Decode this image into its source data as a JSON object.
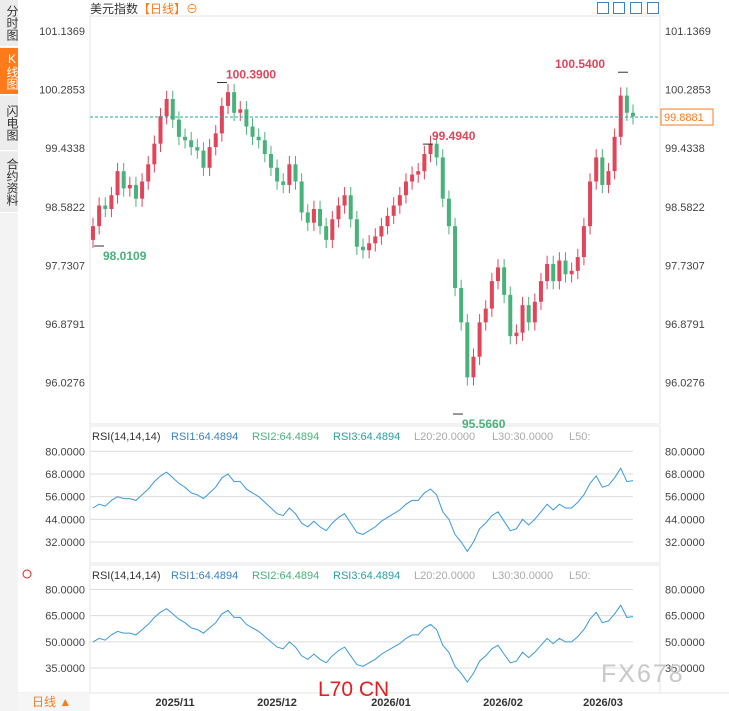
{
  "sidebar": {
    "tabs": [
      {
        "label": "分时图",
        "active": false
      },
      {
        "label": "K线图",
        "active": true
      },
      {
        "label": "闪电图",
        "active": false
      },
      {
        "label": "合约资料",
        "active": false
      }
    ]
  },
  "header": {
    "title": "美元指数",
    "timeframe": "【日线】",
    "settings_glyph": "⊖",
    "toolbar_icons": [
      "fit-icon",
      "expand-icon",
      "arrow-icon",
      "close-icon"
    ]
  },
  "footer": {
    "timeframe": "日线 ▲"
  },
  "watermarks": {
    "left": "L70 CN",
    "right": "FX678"
  },
  "colors": {
    "up": "#e0455a",
    "down": "#48b27a",
    "accent": "#ff7a1a",
    "rsi": "#3a9ad9"
  },
  "chart_data": [
    {
      "type": "candlestick",
      "title": "美元指数",
      "ylim": [
        95.45,
        101.3
      ],
      "y_ticks": [
        "101.1369",
        "100.2853",
        "99.4338",
        "98.5822",
        "97.7307",
        "96.8791",
        "96.0276"
      ],
      "x_ticks": [
        "2025/11",
        "2025/12",
        "2026/01",
        "2026/02",
        "2026/03"
      ],
      "last_price": "99.8881",
      "last_price_value": 99.8881,
      "annotations": [
        {
          "label": "98.0109",
          "value": 98.0109,
          "kind": "low"
        },
        {
          "label": "100.3900",
          "value": 100.39,
          "kind": "high"
        },
        {
          "label": "99.4940",
          "value": 99.494,
          "kind": "high"
        },
        {
          "label": "95.5660",
          "value": 95.566,
          "kind": "low"
        },
        {
          "label": "100.5400",
          "value": 100.54,
          "kind": "high"
        }
      ],
      "closes": [
        98.3,
        98.6,
        98.55,
        98.75,
        99.1,
        98.85,
        98.9,
        98.7,
        98.95,
        99.2,
        99.5,
        99.9,
        100.15,
        99.85,
        99.6,
        99.55,
        99.45,
        99.4,
        99.15,
        99.45,
        99.65,
        100.05,
        100.25,
        99.95,
        100.0,
        99.75,
        99.6,
        99.55,
        99.35,
        99.15,
        98.95,
        98.9,
        99.2,
        98.95,
        98.5,
        98.35,
        98.55,
        98.3,
        98.1,
        98.4,
        98.6,
        98.75,
        98.4,
        98.0,
        97.95,
        98.05,
        98.15,
        98.3,
        98.45,
        98.6,
        98.75,
        98.95,
        99.05,
        99.1,
        99.35,
        99.5,
        99.3,
        98.7,
        98.3,
        97.4,
        96.9,
        96.1,
        96.4,
        96.9,
        97.1,
        97.5,
        97.7,
        97.3,
        96.7,
        96.75,
        97.15,
        96.9,
        97.2,
        97.5,
        97.75,
        97.5,
        97.8,
        97.6,
        97.65,
        97.85,
        98.3,
        98.95,
        99.3,
        98.9,
        99.1,
        99.6,
        100.2,
        99.95,
        99.9
      ],
      "opens": [
        98.1,
        98.3,
        98.6,
        98.55,
        98.75,
        99.1,
        98.85,
        98.9,
        98.7,
        98.95,
        99.2,
        99.5,
        99.9,
        100.15,
        99.85,
        99.6,
        99.55,
        99.45,
        99.4,
        99.15,
        99.45,
        99.65,
        100.05,
        100.25,
        99.95,
        100.0,
        99.75,
        99.6,
        99.55,
        99.35,
        99.15,
        98.95,
        98.9,
        99.2,
        98.95,
        98.5,
        98.35,
        98.55,
        98.3,
        98.1,
        98.4,
        98.6,
        98.75,
        98.4,
        98.0,
        97.95,
        98.05,
        98.15,
        98.3,
        98.45,
        98.6,
        98.75,
        98.95,
        99.05,
        99.1,
        99.35,
        99.5,
        99.3,
        98.7,
        98.3,
        97.4,
        96.9,
        96.1,
        96.4,
        96.9,
        97.1,
        97.5,
        97.7,
        97.3,
        96.7,
        96.75,
        97.15,
        96.9,
        97.2,
        97.5,
        97.75,
        97.5,
        97.8,
        97.6,
        97.65,
        97.85,
        98.3,
        98.95,
        99.3,
        98.9,
        99.1,
        99.6,
        100.2,
        99.95
      ],
      "rsi_values": [
        50,
        52,
        51,
        54,
        56,
        55,
        55,
        54,
        57,
        60,
        64,
        67,
        69,
        66,
        63,
        61,
        58,
        57,
        55,
        58,
        61,
        66,
        68,
        64,
        64,
        60,
        58,
        56,
        53,
        50,
        47,
        46,
        50,
        47,
        42,
        40,
        43,
        40,
        38,
        42,
        45,
        47,
        42,
        37,
        36,
        38,
        40,
        43,
        45,
        47,
        49,
        52,
        54,
        54,
        58,
        60,
        57,
        48,
        44,
        36,
        32,
        27,
        32,
        39,
        42,
        46,
        48,
        43,
        38,
        39,
        44,
        41,
        44,
        48,
        52,
        49,
        52,
        50,
        50,
        53,
        57,
        63,
        67,
        61,
        62,
        66,
        71,
        64,
        64.49
      ],
      "rsi_ylim": [
        23,
        86
      ]
    }
  ],
  "rsi_panels": [
    {
      "title": "RSI(14,14,14)",
      "rsi1": "RSI1:64.4894",
      "rsi2": "RSI2:64.4894",
      "rsi3": "RSI3:64.4894",
      "l20": "L20:20.0000",
      "l30": "L30:30.0000",
      "l50": "L50:",
      "y_ticks": [
        "80.0000",
        "68.0000",
        "56.0000",
        "44.0000",
        "32.0000"
      ]
    },
    {
      "title": "RSI(14,14,14)",
      "rsi1": "RSI1:64.4894",
      "rsi2": "RSI2:64.4894",
      "rsi3": "RSI3:64.4894",
      "l20": "L20:20.0000",
      "l30": "L30:30.0000",
      "l50": "L50:",
      "y_ticks": [
        "80.0000",
        "65.0000",
        "50.0000",
        "35.0000"
      ]
    }
  ]
}
